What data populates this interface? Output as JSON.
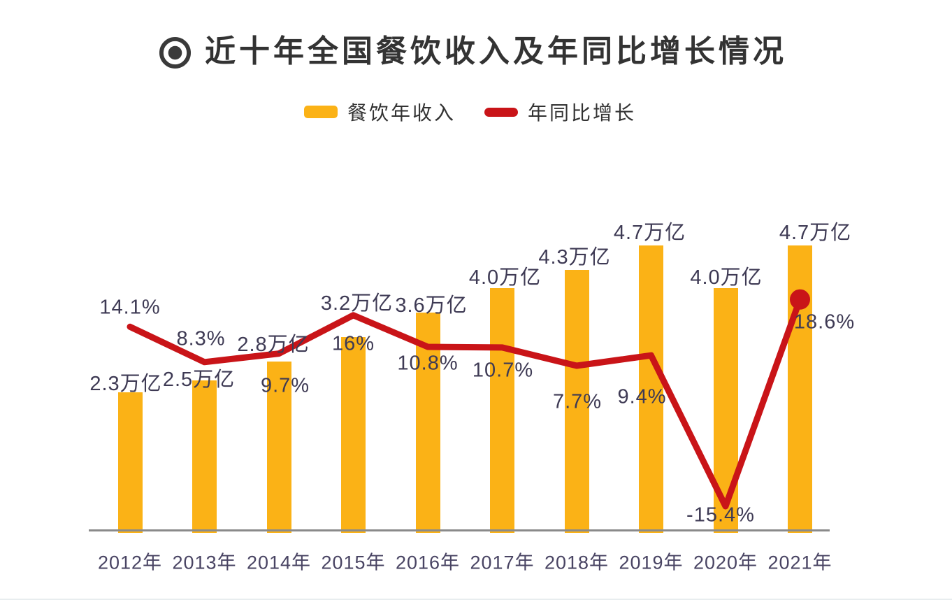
{
  "header": {
    "title": "近十年全国餐饮收入及年同比增长情况",
    "icon": "bullseye-icon"
  },
  "legend": {
    "position": "top-center",
    "items": [
      {
        "label": "餐饮年收入",
        "marker": "bar-swatch",
        "color": "#FBB216"
      },
      {
        "label": "年同比增长",
        "marker": "line-swatch",
        "color": "#C91418"
      }
    ]
  },
  "chart_data": {
    "type": "bar",
    "combo": "bar+line",
    "title": "近十年全国餐饮收入及年同比增长情况",
    "categories": [
      "2012年",
      "2013年",
      "2014年",
      "2015年",
      "2016年",
      "2017年",
      "2018年",
      "2019年",
      "2020年",
      "2021年"
    ],
    "series": [
      {
        "name": "餐饮年收入",
        "type": "bar",
        "unit": "万亿",
        "color": "#FBB216",
        "values": [
          2.3,
          2.5,
          2.8,
          3.2,
          3.6,
          4.0,
          4.3,
          4.7,
          4.0,
          4.7
        ],
        "data_labels": [
          "2.3万亿",
          "2.5万亿",
          "2.8万亿",
          "3.2万亿",
          "3.6万亿",
          "4.0万亿",
          "4.3万亿",
          "4.7万亿",
          "4.0万亿",
          "4.7万亿"
        ]
      },
      {
        "name": "年同比增长",
        "type": "line",
        "unit": "%",
        "color": "#C91418",
        "values": [
          14.1,
          8.3,
          9.7,
          16,
          10.8,
          10.7,
          7.7,
          9.4,
          -15.4,
          18.6
        ],
        "data_labels": [
          "14.1%",
          "8.3%",
          "9.7%",
          "16%",
          "10.8%",
          "10.7%",
          "7.7%",
          "9.4%",
          "-15.4%",
          "18.6%"
        ],
        "end_marker": "dot"
      }
    ],
    "axes": {
      "x_baseline": true,
      "y_axis_visible": false,
      "grid": false
    },
    "legend_position": "top-center"
  },
  "colors": {
    "background": "#FFFFFF",
    "bar": "#FBB216",
    "line": "#C91418",
    "title_text": "#333333",
    "data_label_text": "#3E3A54",
    "category_text": "#494463",
    "axis_line": "#8A8A8A",
    "icon": "#3A3A3A"
  }
}
